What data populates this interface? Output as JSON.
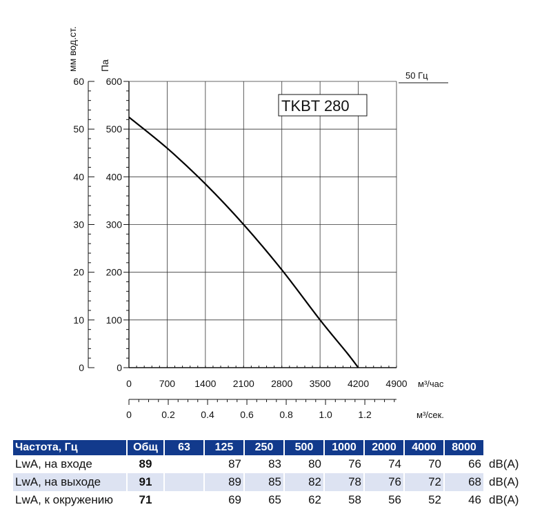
{
  "chart_data": {
    "type": "line",
    "title": "TKBT 280",
    "frequency_label": "50 Гц",
    "y_left_label": "мм вод.ст.",
    "y_right_label": "Па",
    "y_left_ticks": [
      "60",
      "50",
      "40",
      "30",
      "20",
      "10",
      "0"
    ],
    "y_right_ticks": [
      "600",
      "500",
      "400",
      "300",
      "200",
      "100",
      "0"
    ],
    "x_ticks": [
      "0",
      "700",
      "1400",
      "2100",
      "2800",
      "3500",
      "4200",
      "4900"
    ],
    "x_unit": "м³/час",
    "x2_ticks": [
      "0",
      "0.2",
      "0.4",
      "0.6",
      "0.8",
      "1.0",
      "1.2"
    ],
    "x2_unit": "м³/сек.",
    "xlim": [
      0,
      4900
    ],
    "ylim": [
      0,
      600
    ],
    "grid": true,
    "series": [
      {
        "x": [
          0,
          700,
          1400,
          2100,
          2800,
          3500,
          4000,
          4200
        ],
        "y": [
          525,
          460,
          385,
          300,
          205,
          100,
          30,
          0
        ]
      }
    ]
  },
  "table": {
    "headers": [
      "Частота, Гц",
      "Общ",
      "63",
      "125",
      "250",
      "500",
      "1000",
      "2000",
      "4000",
      "8000"
    ],
    "rows": [
      {
        "label": "LwA, на входе",
        "total": "89",
        "values": [
          "",
          "87",
          "83",
          "80",
          "76",
          "74",
          "70",
          "66"
        ],
        "unit": "dB(A)"
      },
      {
        "label": "LwA, на выходе",
        "total": "91",
        "values": [
          "",
          "89",
          "85",
          "82",
          "78",
          "76",
          "72",
          "68"
        ],
        "unit": "dB(A)"
      },
      {
        "label": "LwA, к окружению",
        "total": "71",
        "values": [
          "",
          "69",
          "65",
          "62",
          "58",
          "56",
          "52",
          "46"
        ],
        "unit": "dB(A)"
      }
    ]
  }
}
